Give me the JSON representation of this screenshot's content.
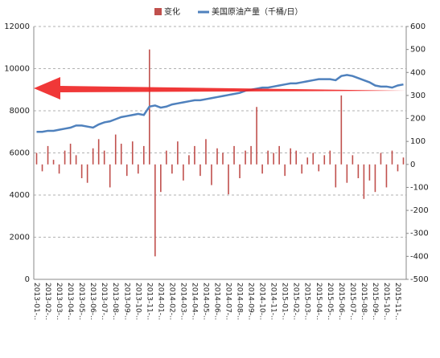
{
  "chart_data": {
    "type": "bar_line",
    "categories": [
      "2013-01-..",
      null,
      "2013-02-..",
      null,
      "2013-03-..",
      null,
      "2013-04-..",
      null,
      "2013-05-..",
      null,
      "2013-06-..",
      null,
      "2013-07-..",
      null,
      "2013-08-..",
      null,
      "2013-09-..",
      null,
      "2013-10-..",
      null,
      "2013-11-..",
      null,
      "2014-01-..",
      null,
      "2014-02-..",
      null,
      "2014-03-..",
      null,
      "2014-04-..",
      null,
      "2014-05-..",
      null,
      "2014-06-..",
      null,
      "2014-07-..",
      null,
      "2014-08-..",
      null,
      "2014-09-..",
      null,
      "2014-10-..",
      null,
      "2014-11-..",
      null,
      "2015-01-..",
      null,
      "2015-02-..",
      null,
      "2015-03-..",
      null,
      "2015-04-..",
      null,
      "2015-05-..",
      null,
      "2015-06-..",
      null,
      "2015-07-..",
      null,
      "2015-08-..",
      null,
      "2015-09-..",
      null,
      "2015-10-..",
      null,
      "2015-11-..",
      null
    ],
    "series": [
      {
        "name": "变化",
        "color": "#c0504d",
        "kind": "bar",
        "axis": "y2",
        "values": [
          50,
          -30,
          80,
          20,
          -40,
          60,
          90,
          40,
          -60,
          -80,
          70,
          110,
          60,
          -100,
          130,
          90,
          -50,
          100,
          -40,
          80,
          500,
          -400,
          -120,
          60,
          -40,
          100,
          -70,
          40,
          80,
          -50,
          110,
          -90,
          70,
          50,
          -130,
          80,
          -60,
          60,
          80,
          250,
          -40,
          60,
          50,
          80,
          -50,
          70,
          60,
          -40,
          30,
          50,
          -30,
          40,
          60,
          -100,
          300,
          -80,
          40,
          -60,
          -150,
          -70,
          -120,
          50,
          -100,
          60,
          -30,
          30
        ]
      },
      {
        "name": "美国原油产量（千桶/日）",
        "color": "#4f81bd",
        "kind": "line",
        "values": [
          7000,
          7000,
          7050,
          7050,
          7100,
          7150,
          7200,
          7300,
          7300,
          7250,
          7200,
          7350,
          7450,
          7500,
          7600,
          7700,
          7750,
          7800,
          7850,
          7800,
          8200,
          8250,
          8150,
          8200,
          8300,
          8350,
          8400,
          8450,
          8500,
          8500,
          8550,
          8600,
          8650,
          8700,
          8750,
          8800,
          8850,
          8950,
          9000,
          9050,
          9100,
          9100,
          9150,
          9200,
          9250,
          9300,
          9300,
          9350,
          9400,
          9450,
          9500,
          9500,
          9500,
          9450,
          9650,
          9700,
          9650,
          9550,
          9450,
          9350,
          9200,
          9150,
          9150,
          9100,
          9200,
          9250
        ]
      }
    ],
    "ylim": [
      0,
      12000
    ],
    "yticks": [
      0,
      2000,
      4000,
      6000,
      8000,
      10000,
      12000
    ],
    "y2lim": [
      -500,
      600
    ],
    "y2ticks": [
      -500,
      -400,
      -300,
      -200,
      -100,
      0,
      100,
      200,
      300,
      400,
      500,
      600
    ],
    "grid": true,
    "legend": "top"
  }
}
